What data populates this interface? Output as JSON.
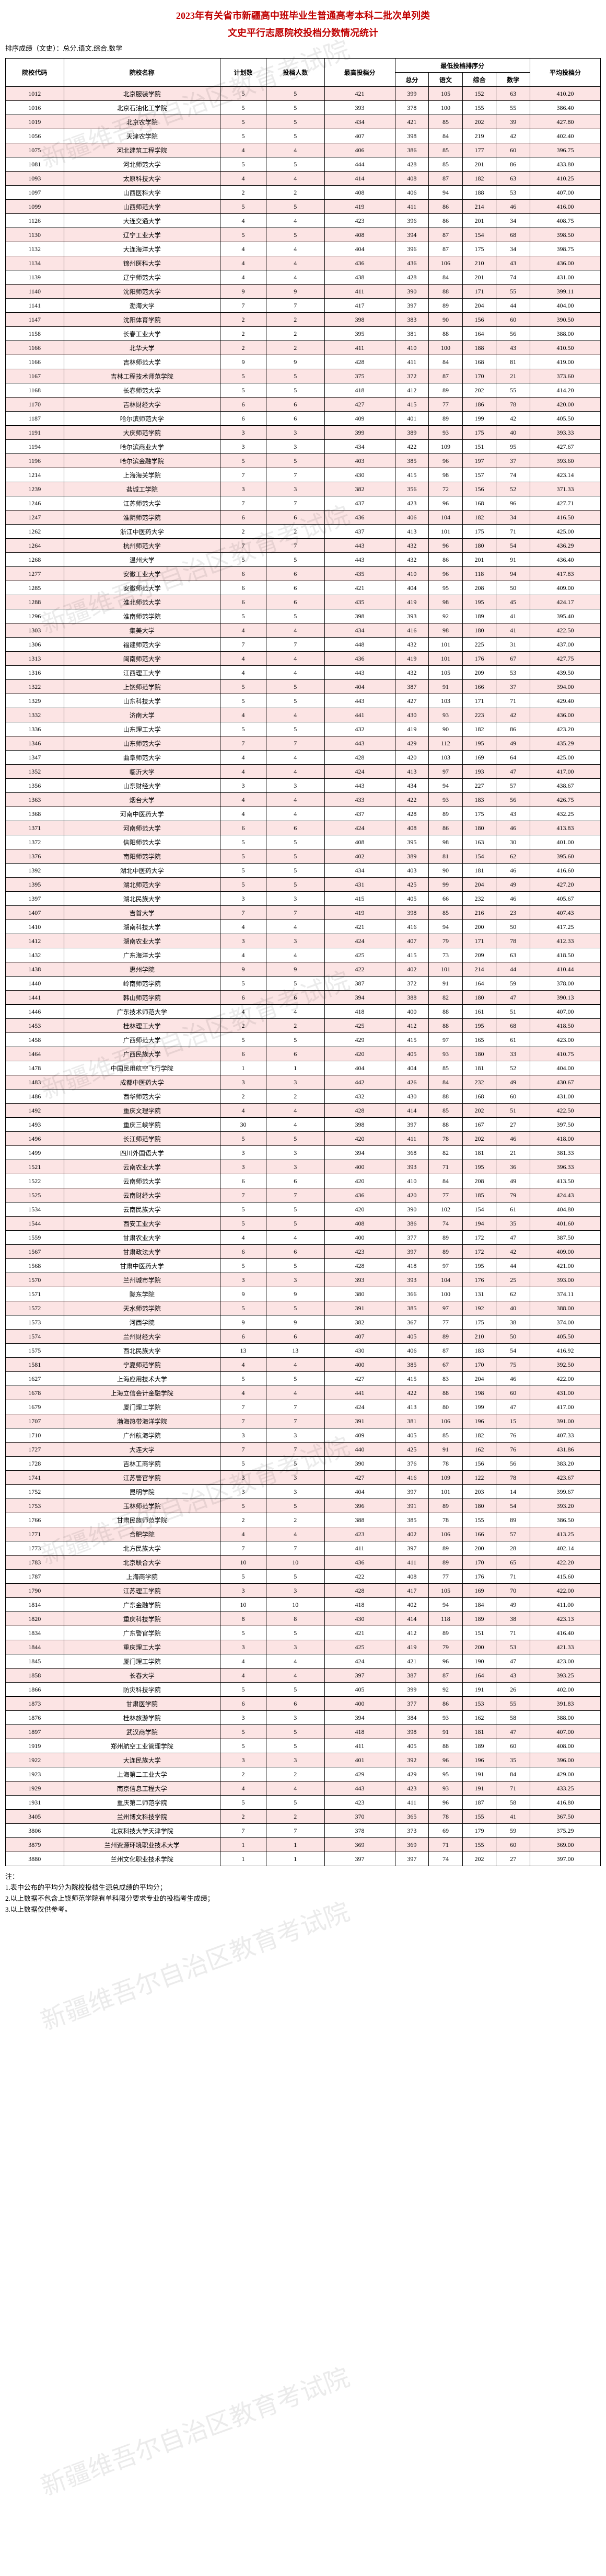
{
  "title_line1": "2023年有关省市新疆高中班毕业生普通高考本科二批次单列类",
  "title_line2": "文史平行志愿院校投档分数情况统计",
  "subtitle": "排序成绩（文史）：总分.语文.综合.数学",
  "columns_group": "最低投档排序分",
  "columns": [
    "院校代码",
    "院校名称",
    "计划数",
    "投档人数",
    "最高投档分",
    "总分",
    "语文",
    "综合",
    "数学",
    "平均投档分"
  ],
  "notes": [
    "注：",
    "1.表中公布的平均分为院校投档生源总成绩的平均分；",
    "2.以上数据不包含上饶师范学院有单科限分要求专业的投档考生成绩；",
    "3.以上数据仅供参考。"
  ],
  "watermark_text": "新疆维吾尔自治区教育考试院",
  "rows": [
    [
      "1012",
      "北京服装学院",
      5,
      5,
      421,
      399,
      105,
      152,
      63,
      "410.20"
    ],
    [
      "1016",
      "北京石油化工学院",
      5,
      5,
      393,
      378,
      100,
      155,
      55,
      "386.40"
    ],
    [
      "1019",
      "北京农学院",
      5,
      5,
      434,
      421,
      85,
      202,
      39,
      "427.80"
    ],
    [
      "1056",
      "天津农学院",
      5,
      5,
      407,
      398,
      84,
      219,
      42,
      "402.40"
    ],
    [
      "1075",
      "河北建筑工程学院",
      4,
      4,
      406,
      386,
      85,
      177,
      60,
      "396.75"
    ],
    [
      "1081",
      "河北师范大学",
      5,
      5,
      444,
      428,
      85,
      201,
      86,
      "433.80"
    ],
    [
      "1093",
      "太原科技大学",
      4,
      4,
      414,
      408,
      87,
      182,
      63,
      "410.25"
    ],
    [
      "1097",
      "山西医科大学",
      2,
      2,
      408,
      406,
      94,
      188,
      53,
      "407.00"
    ],
    [
      "1099",
      "山西师范大学",
      5,
      5,
      419,
      411,
      86,
      214,
      46,
      "416.00"
    ],
    [
      "1126",
      "大连交通大学",
      4,
      4,
      423,
      396,
      86,
      201,
      34,
      "408.75"
    ],
    [
      "1130",
      "辽宁工业大学",
      5,
      5,
      408,
      394,
      87,
      154,
      68,
      "398.50"
    ],
    [
      "1132",
      "大连海洋大学",
      4,
      4,
      404,
      396,
      87,
      175,
      34,
      "398.75"
    ],
    [
      "1134",
      "锦州医科大学",
      4,
      4,
      436,
      436,
      106,
      210,
      43,
      "436.00"
    ],
    [
      "1139",
      "辽宁师范大学",
      4,
      4,
      438,
      428,
      84,
      201,
      74,
      "431.00"
    ],
    [
      "1140",
      "沈阳师范大学",
      9,
      9,
      411,
      390,
      88,
      171,
      55,
      "399.11"
    ],
    [
      "1141",
      "渤海大学",
      7,
      7,
      417,
      397,
      89,
      204,
      44,
      "404.00"
    ],
    [
      "1147",
      "沈阳体育学院",
      2,
      2,
      398,
      383,
      90,
      156,
      60,
      "390.50"
    ],
    [
      "1158",
      "长春工业大学",
      2,
      2,
      395,
      381,
      88,
      164,
      56,
      "388.00"
    ],
    [
      "1166",
      "北华大学",
      2,
      2,
      411,
      410,
      100,
      188,
      43,
      "410.50"
    ],
    [
      "1166",
      "吉林师范大学",
      9,
      9,
      428,
      411,
      84,
      168,
      81,
      "419.00"
    ],
    [
      "1167",
      "吉林工程技术师范学院",
      5,
      5,
      375,
      372,
      87,
      170,
      21,
      "373.60"
    ],
    [
      "1168",
      "长春师范大学",
      5,
      5,
      418,
      412,
      89,
      202,
      55,
      "414.20"
    ],
    [
      "1170",
      "吉林财经大学",
      6,
      6,
      427,
      415,
      77,
      186,
      78,
      "420.00"
    ],
    [
      "1187",
      "哈尔滨师范大学",
      6,
      6,
      409,
      401,
      89,
      199,
      42,
      "405.50"
    ],
    [
      "1191",
      "大庆师范学院",
      3,
      3,
      399,
      389,
      93,
      175,
      40,
      "393.33"
    ],
    [
      "1194",
      "哈尔滨商业大学",
      3,
      3,
      434,
      422,
      109,
      151,
      95,
      "427.67"
    ],
    [
      "1196",
      "哈尔滨金融学院",
      5,
      5,
      403,
      385,
      96,
      197,
      37,
      "393.60"
    ],
    [
      "1214",
      "上海海关学院",
      7,
      7,
      430,
      415,
      98,
      157,
      74,
      "423.14"
    ],
    [
      "1239",
      "盐城工学院",
      3,
      3,
      382,
      356,
      72,
      156,
      52,
      "371.33"
    ],
    [
      "1246",
      "江苏师范大学",
      7,
      7,
      437,
      423,
      96,
      168,
      96,
      "427.71"
    ],
    [
      "1247",
      "淮阴师范学院",
      6,
      6,
      436,
      406,
      104,
      182,
      34,
      "416.50"
    ],
    [
      "1262",
      "浙江中医药大学",
      2,
      2,
      437,
      413,
      101,
      175,
      71,
      "425.00"
    ],
    [
      "1264",
      "杭州师范大学",
      7,
      7,
      443,
      432,
      96,
      180,
      54,
      "436.29"
    ],
    [
      "1268",
      "温州大学",
      5,
      5,
      443,
      432,
      86,
      201,
      91,
      "436.40"
    ],
    [
      "1277",
      "安徽工业大学",
      6,
      6,
      435,
      410,
      96,
      118,
      94,
      "417.83"
    ],
    [
      "1285",
      "安徽师范大学",
      6,
      6,
      421,
      404,
      95,
      208,
      50,
      "409.00"
    ],
    [
      "1288",
      "淮北师范大学",
      6,
      6,
      435,
      419,
      98,
      195,
      45,
      "424.17"
    ],
    [
      "1296",
      "淮南师范学院",
      5,
      5,
      398,
      393,
      92,
      189,
      41,
      "395.40"
    ],
    [
      "1303",
      "集美大学",
      4,
      4,
      434,
      416,
      98,
      180,
      41,
      "422.50"
    ],
    [
      "1306",
      "福建师范大学",
      7,
      7,
      448,
      432,
      101,
      225,
      31,
      "437.00"
    ],
    [
      "1313",
      "闽南师范大学",
      4,
      4,
      436,
      419,
      101,
      176,
      67,
      "427.75"
    ],
    [
      "1316",
      "江西理工大学",
      4,
      4,
      443,
      432,
      105,
      209,
      53,
      "439.50"
    ],
    [
      "1322",
      "上饶师范学院",
      5,
      5,
      404,
      387,
      91,
      166,
      37,
      "394.00"
    ],
    [
      "1329",
      "山东科技大学",
      5,
      5,
      443,
      427,
      103,
      171,
      71,
      "429.40"
    ],
    [
      "1332",
      "济南大学",
      4,
      4,
      441,
      430,
      93,
      223,
      42,
      "436.00"
    ],
    [
      "1336",
      "山东理工大学",
      5,
      5,
      432,
      419,
      90,
      182,
      86,
      "423.20"
    ],
    [
      "1346",
      "山东师范大学",
      7,
      7,
      443,
      429,
      112,
      195,
      49,
      "435.29"
    ],
    [
      "1347",
      "曲阜师范大学",
      4,
      4,
      428,
      420,
      103,
      169,
      64,
      "425.00"
    ],
    [
      "1352",
      "临沂大学",
      4,
      4,
      424,
      413,
      97,
      193,
      47,
      "417.00"
    ],
    [
      "1356",
      "山东财经大学",
      3,
      3,
      443,
      434,
      94,
      227,
      57,
      "438.67"
    ],
    [
      "1363",
      "烟台大学",
      4,
      4,
      433,
      422,
      93,
      183,
      56,
      "426.75"
    ],
    [
      "1368",
      "河南中医药大学",
      4,
      4,
      437,
      428,
      89,
      175,
      43,
      "432.25"
    ],
    [
      "1371",
      "河南师范大学",
      6,
      6,
      424,
      408,
      86,
      180,
      46,
      "413.83"
    ],
    [
      "1372",
      "信阳师范大学",
      5,
      5,
      408,
      395,
      98,
      163,
      30,
      "401.00"
    ],
    [
      "1376",
      "南阳师范学院",
      5,
      5,
      402,
      389,
      81,
      154,
      62,
      "395.60"
    ],
    [
      "1392",
      "湖北中医药大学",
      5,
      5,
      434,
      403,
      90,
      181,
      46,
      "416.60"
    ],
    [
      "1395",
      "湖北师范大学",
      5,
      5,
      431,
      425,
      99,
      204,
      49,
      "427.20"
    ],
    [
      "1397",
      "湖北民族大学",
      3,
      3,
      415,
      405,
      66,
      232,
      46,
      "405.67"
    ],
    [
      "1407",
      "吉首大学",
      7,
      7,
      419,
      398,
      85,
      216,
      23,
      "407.43"
    ],
    [
      "1410",
      "湖南科技大学",
      4,
      4,
      421,
      416,
      94,
      200,
      50,
      "417.25"
    ],
    [
      "1412",
      "湖南农业大学",
      3,
      3,
      424,
      407,
      79,
      171,
      78,
      "412.33"
    ],
    [
      "1432",
      "广东海洋大学",
      4,
      4,
      425,
      415,
      73,
      209,
      63,
      "418.50"
    ],
    [
      "1438",
      "惠州学院",
      9,
      9,
      422,
      402,
      101,
      214,
      44,
      "410.44"
    ],
    [
      "1440",
      "岭南师范学院",
      5,
      5,
      387,
      372,
      91,
      164,
      59,
      "378.00"
    ],
    [
      "1441",
      "韩山师范学院",
      6,
      6,
      394,
      388,
      82,
      180,
      47,
      "390.13"
    ],
    [
      "1446",
      "广东技术师范大学",
      4,
      4,
      418,
      400,
      88,
      161,
      51,
      "407.00"
    ],
    [
      "1453",
      "桂林理工大学",
      2,
      2,
      425,
      412,
      88,
      195,
      68,
      "418.50"
    ],
    [
      "1458",
      "广西师范大学",
      5,
      5,
      429,
      415,
      97,
      165,
      61,
      "423.00"
    ],
    [
      "1464",
      "广西民族大学",
      6,
      6,
      420,
      405,
      93,
      180,
      33,
      "410.75"
    ],
    [
      "1478",
      "中国民用航空飞行学院",
      1,
      1,
      404,
      404,
      85,
      181,
      52,
      "404.00"
    ],
    [
      "1483",
      "成都中医药大学",
      3,
      3,
      442,
      426,
      84,
      232,
      49,
      "430.67"
    ],
    [
      "1486",
      "西华师范大学",
      2,
      2,
      432,
      430,
      88,
      168,
      60,
      "431.00"
    ],
    [
      "1492",
      "重庆文理学院",
      4,
      4,
      428,
      414,
      85,
      202,
      51,
      "422.50"
    ],
    [
      "1493",
      "重庆三峡学院",
      30,
      4,
      398,
      397,
      88,
      167,
      27,
      "397.50"
    ],
    [
      "1496",
      "长江师范学院",
      5,
      5,
      420,
      411,
      78,
      202,
      46,
      "418.00"
    ],
    [
      "1499",
      "四川外国语大学",
      3,
      3,
      394,
      368,
      82,
      181,
      21,
      "381.33"
    ],
    [
      "1521",
      "云南农业大学",
      3,
      3,
      400,
      393,
      71,
      195,
      36,
      "396.33"
    ],
    [
      "1522",
      "云南师范大学",
      6,
      6,
      420,
      410,
      84,
      208,
      49,
      "413.50"
    ],
    [
      "1525",
      "云南财经大学",
      7,
      7,
      436,
      420,
      77,
      185,
      79,
      "424.43"
    ],
    [
      "1534",
      "云南民族大学",
      5,
      5,
      420,
      390,
      102,
      154,
      61,
      "404.80"
    ],
    [
      "1544",
      "西安工业大学",
      5,
      5,
      408,
      386,
      74,
      194,
      35,
      "401.60"
    ],
    [
      "1559",
      "甘肃农业大学",
      4,
      4,
      400,
      377,
      89,
      172,
      47,
      "387.50"
    ],
    [
      "1567",
      "甘肃政法大学",
      6,
      6,
      423,
      397,
      89,
      172,
      42,
      "409.00"
    ],
    [
      "1568",
      "甘肃中医药大学",
      5,
      5,
      428,
      418,
      97,
      195,
      44,
      "421.00"
    ],
    [
      "1570",
      "兰州城市学院",
      3,
      3,
      393,
      393,
      104,
      176,
      25,
      "393.00"
    ],
    [
      "1571",
      "陇东学院",
      9,
      9,
      380,
      366,
      100,
      131,
      62,
      "374.11"
    ],
    [
      "1572",
      "天水师范学院",
      5,
      5,
      391,
      385,
      97,
      192,
      40,
      "388.00"
    ],
    [
      "1573",
      "河西学院",
      9,
      9,
      382,
      367,
      77,
      175,
      38,
      "374.00"
    ],
    [
      "1574",
      "兰州财经大学",
      6,
      6,
      407,
      405,
      89,
      210,
      50,
      "405.50"
    ],
    [
      "1575",
      "西北民族大学",
      13,
      13,
      430,
      406,
      87,
      183,
      54,
      "416.92"
    ],
    [
      "1581",
      "宁夏师范学院",
      4,
      4,
      400,
      385,
      67,
      170,
      75,
      "392.50"
    ],
    [
      "1627",
      "上海应用技术大学",
      5,
      5,
      427,
      415,
      83,
      204,
      46,
      "422.00"
    ],
    [
      "1678",
      "上海立信会计金融学院",
      4,
      4,
      441,
      422,
      88,
      198,
      60,
      "431.00"
    ],
    [
      "1679",
      "厦门理工学院",
      7,
      7,
      424,
      413,
      80,
      199,
      47,
      "417.00"
    ],
    [
      "1707",
      "渤海热带海洋学院",
      7,
      7,
      391,
      381,
      106,
      196,
      15,
      "391.00"
    ],
    [
      "1710",
      "广州航海学院",
      3,
      3,
      409,
      405,
      85,
      182,
      76,
      "407.33"
    ],
    [
      "1727",
      "大连大学",
      7,
      7,
      440,
      425,
      91,
      162,
      76,
      "431.86"
    ],
    [
      "1728",
      "吉林工商学院",
      5,
      5,
      390,
      376,
      78,
      156,
      56,
      "383.20"
    ],
    [
      "1741",
      "江苏警官学院",
      3,
      3,
      427,
      416,
      109,
      122,
      78,
      "423.67"
    ],
    [
      "1752",
      "昆明学院",
      3,
      3,
      404,
      397,
      101,
      203,
      14,
      "399.67"
    ],
    [
      "1753",
      "玉林师范学院",
      5,
      5,
      396,
      391,
      89,
      180,
      54,
      "393.20"
    ],
    [
      "1766",
      "甘肃民族师范学院",
      2,
      2,
      388,
      385,
      78,
      155,
      89,
      "386.50"
    ],
    [
      "1771",
      "合肥学院",
      4,
      4,
      423,
      402,
      106,
      166,
      57,
      "413.25"
    ],
    [
      "1773",
      "北方民族大学",
      7,
      7,
      411,
      397,
      89,
      200,
      28,
      "402.14"
    ],
    [
      "1783",
      "北京联合大学",
      10,
      10,
      436,
      411,
      89,
      170,
      65,
      "422.20"
    ],
    [
      "1787",
      "上海商学院",
      5,
      5,
      422,
      408,
      77,
      176,
      71,
      "415.60"
    ],
    [
      "1790",
      "江苏理工学院",
      3,
      3,
      428,
      417,
      105,
      169,
      70,
      "422.00"
    ],
    [
      "1814",
      "广东金融学院",
      10,
      10,
      418,
      402,
      94,
      184,
      49,
      "411.00"
    ],
    [
      "1820",
      "重庆科技学院",
      8,
      8,
      430,
      414,
      118,
      189,
      38,
      "423.13"
    ],
    [
      "1834",
      "广东警官学院",
      5,
      5,
      421,
      412,
      89,
      151,
      71,
      "416.40"
    ],
    [
      "1844",
      "重庆理工大学",
      3,
      3,
      425,
      419,
      79,
      200,
      53,
      "421.33"
    ],
    [
      "1845",
      "厦门理工学院",
      4,
      4,
      424,
      421,
      96,
      190,
      47,
      "423.00"
    ],
    [
      "1858",
      "长春大学",
      4,
      4,
      397,
      387,
      87,
      164,
      43,
      "393.25"
    ],
    [
      "1866",
      "防灾科技学院",
      5,
      5,
      405,
      399,
      92,
      191,
      26,
      "402.00"
    ],
    [
      "1873",
      "甘肃医学院",
      6,
      6,
      400,
      377,
      86,
      153,
      55,
      "391.83"
    ],
    [
      "1876",
      "桂林旅游学院",
      3,
      3,
      394,
      384,
      93,
      162,
      58,
      "388.00"
    ],
    [
      "1897",
      "武汉商学院",
      5,
      5,
      418,
      398,
      91,
      181,
      47,
      "407.00"
    ],
    [
      "1919",
      "郑州航空工业管理学院",
      5,
      5,
      411,
      405,
      88,
      189,
      60,
      "408.00"
    ],
    [
      "1922",
      "大连民族大学",
      3,
      3,
      401,
      392,
      96,
      196,
      35,
      "396.00"
    ],
    [
      "1923",
      "上海第二工业大学",
      2,
      2,
      429,
      429,
      95,
      191,
      84,
      "429.00"
    ],
    [
      "1929",
      "南京信息工程大学",
      4,
      4,
      443,
      423,
      93,
      191,
      71,
      "433.25"
    ],
    [
      "1931",
      "重庆第二师范学院",
      5,
      5,
      423,
      411,
      96,
      187,
      58,
      "416.80"
    ],
    [
      "3405",
      "兰州博文科技学院",
      2,
      2,
      370,
      365,
      78,
      155,
      41,
      "367.50"
    ],
    [
      "3806",
      "北京科技大学天津学院",
      7,
      7,
      378,
      373,
      69,
      179,
      59,
      "375.29"
    ],
    [
      "3879",
      "兰州资源环境职业技术大学",
      1,
      1,
      369,
      369,
      71,
      155,
      60,
      "369.00"
    ],
    [
      "3880",
      "兰州文化职业技术学院",
      1,
      1,
      397,
      397,
      74,
      202,
      27,
      "397.00"
    ]
  ]
}
